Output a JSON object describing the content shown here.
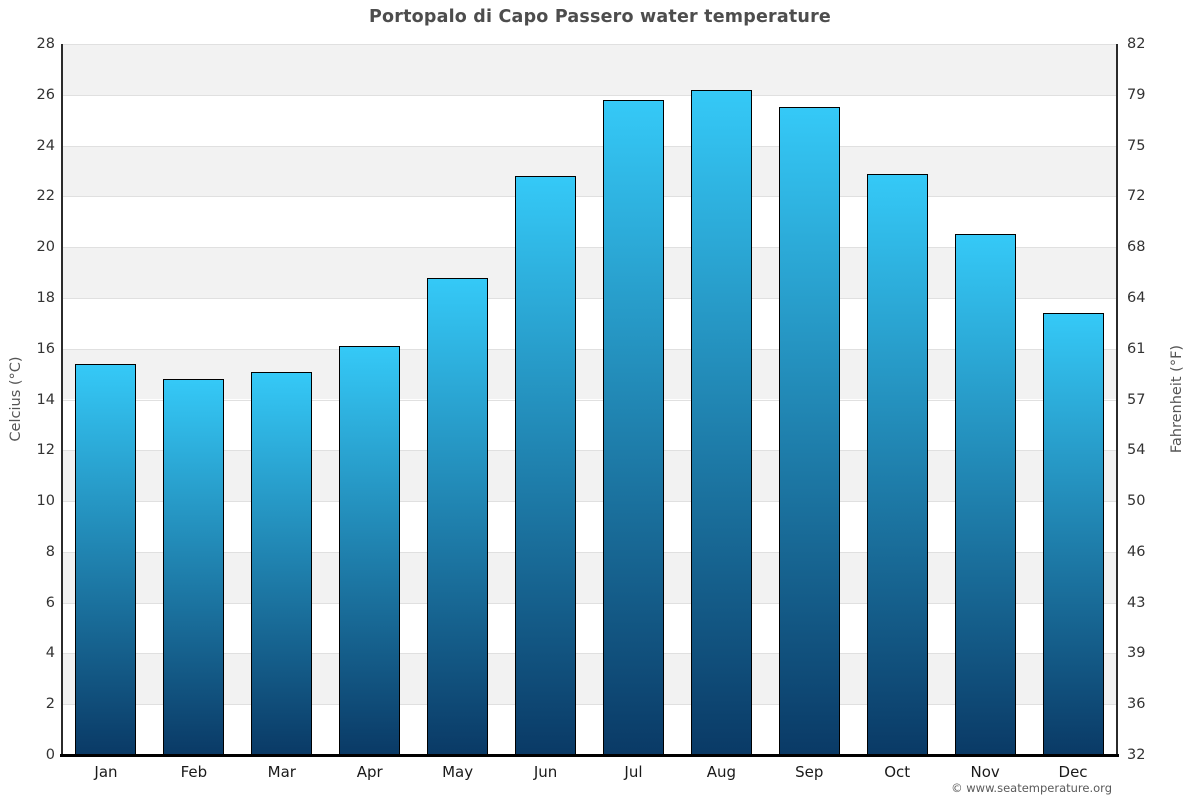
{
  "title": "Portopalo di Capo Passero water temperature",
  "credit": "© www.seatemperature.org",
  "axes": {
    "left_title": "Celcius (°C)",
    "right_title": "Fahrenheit (°F)"
  },
  "chart_data": {
    "type": "bar",
    "title": "Portopalo di Capo Passero water temperature",
    "categories": [
      "Jan",
      "Feb",
      "Mar",
      "Apr",
      "May",
      "Jun",
      "Jul",
      "Aug",
      "Sep",
      "Oct",
      "Nov",
      "Dec"
    ],
    "values": [
      15.4,
      14.8,
      15.1,
      16.1,
      18.8,
      22.8,
      25.8,
      26.2,
      25.5,
      22.9,
      20.5,
      17.4
    ],
    "series_name": "Water temperature (°C)",
    "xlabel": "",
    "ylabel_left": "Celcius (°C)",
    "ylabel_right": "Fahrenheit (°F)",
    "ylim_celsius": [
      0,
      28
    ],
    "yticks_celsius": [
      0,
      2,
      4,
      6,
      8,
      10,
      12,
      14,
      16,
      18,
      20,
      22,
      24,
      26,
      28
    ],
    "yticks_fahrenheit": [
      32,
      36,
      39,
      43,
      46,
      50,
      54,
      57,
      61,
      64,
      68,
      72,
      75,
      79,
      82
    ],
    "grid": "alternating-bands",
    "legend_position": "none",
    "colors": {
      "bar_gradient_top": "#35c9f7",
      "bar_gradient_bottom": "#0a3a66",
      "bar_border": "#000000",
      "band_gray": "#f2f2f2",
      "band_white": "#ffffff",
      "gridline": "#e0e0e0",
      "axis_line": "#2b2b2b",
      "bottom_axis": "#000000",
      "title_text": "#4d4d4d",
      "tick_text": "#333333"
    }
  }
}
